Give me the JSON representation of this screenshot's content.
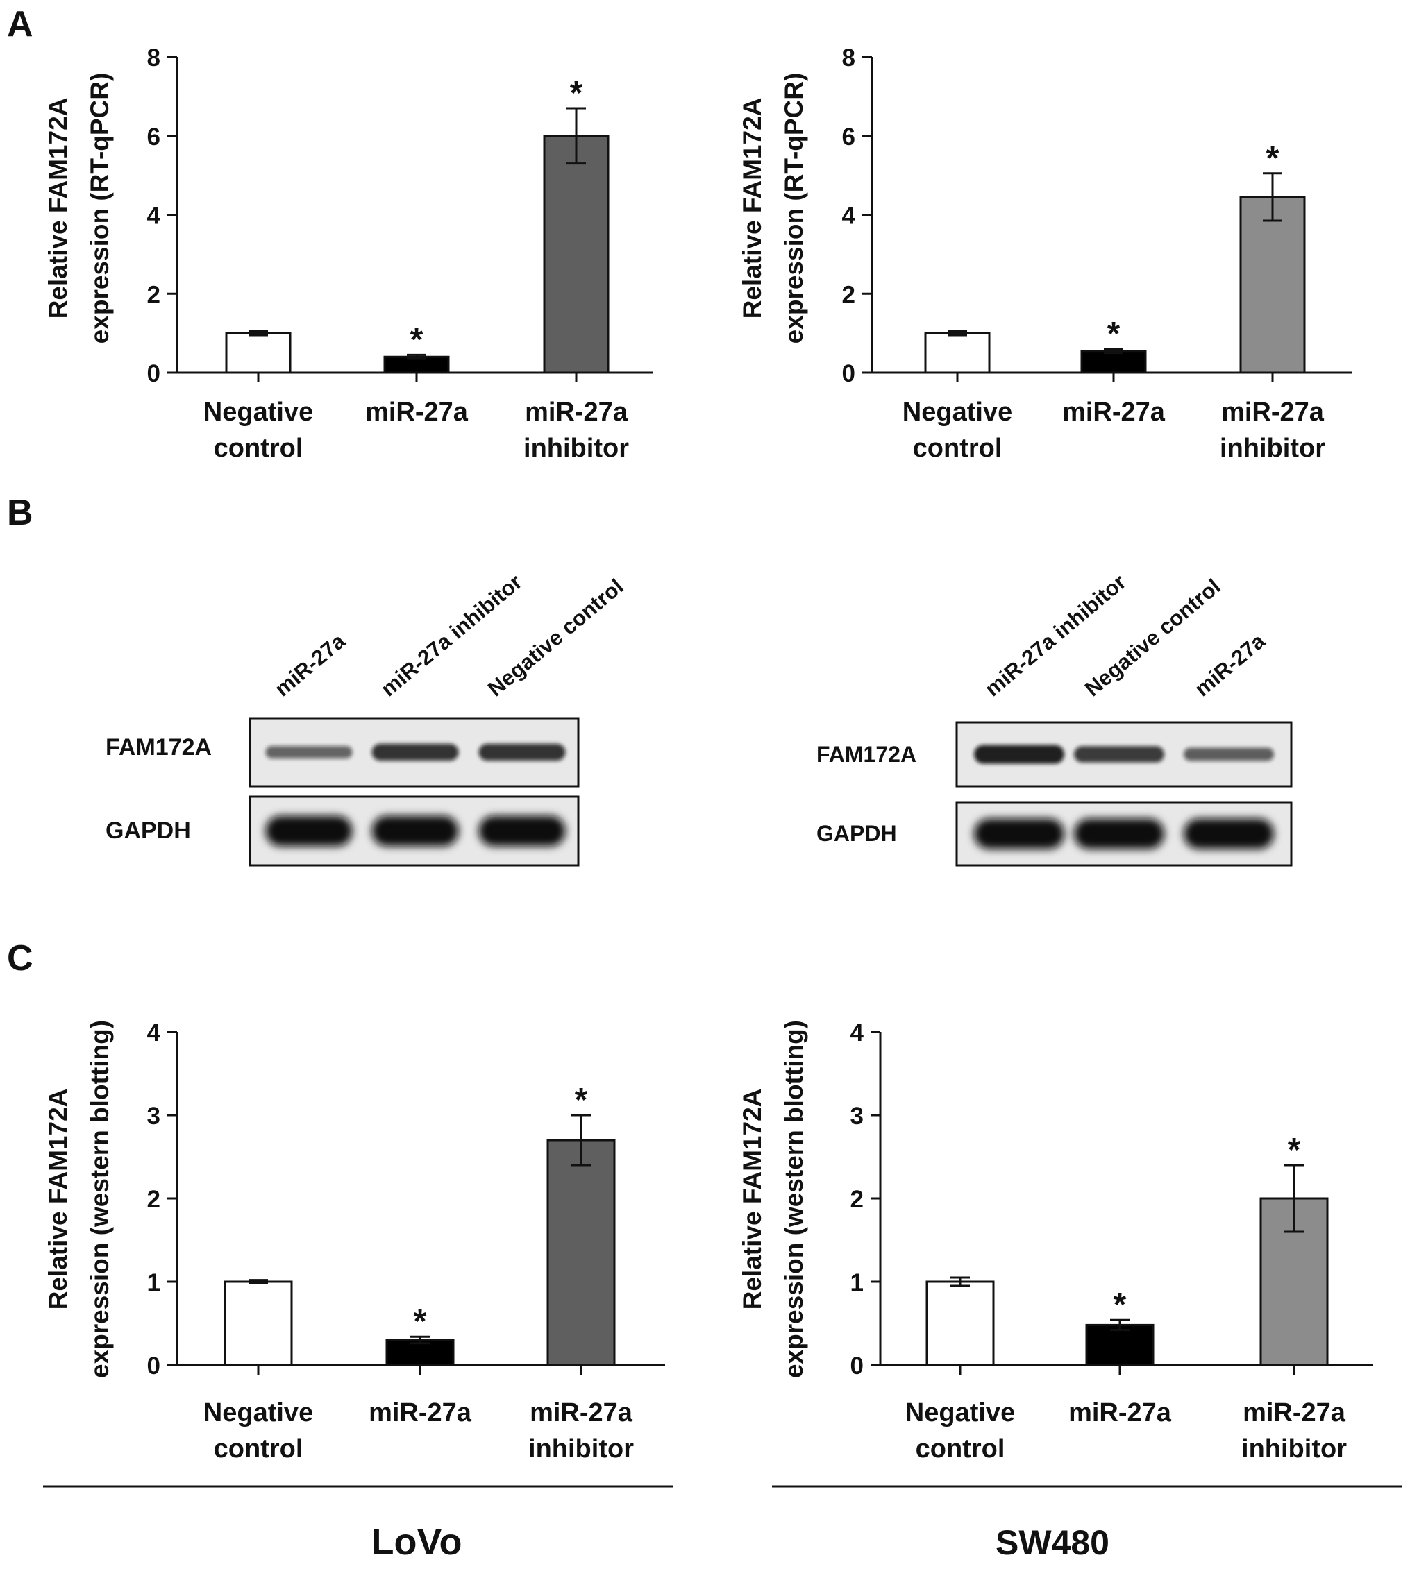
{
  "panel_letters": [
    "A",
    "B",
    "C"
  ],
  "cell_lines": [
    "LoVo",
    "SW480"
  ],
  "colors": {
    "negative_control": "#ffffff",
    "mir27a": "#000000",
    "inhibitor_lovo": "#5f5f5f",
    "inhibitor_sw480": "#8c8c8c"
  },
  "chart_data": [
    {
      "id": "A-LoVo",
      "type": "bar",
      "categories": [
        "Negative control",
        "miR-27a",
        "miR-27a inhibitor"
      ],
      "category_lines": [
        [
          "Negative",
          "control"
        ],
        [
          "miR-27a"
        ],
        [
          "miR-27a",
          "inhibitor"
        ]
      ],
      "values": [
        1.0,
        0.4,
        6.0
      ],
      "errors": [
        0.05,
        0.05,
        0.7
      ],
      "significance": [
        "",
        "*",
        "*"
      ],
      "bar_colors": [
        "#ffffff",
        "#000000",
        "#5f5f5f"
      ],
      "ylabel_lines": [
        "Relative FAM172A",
        "expression (RT-qPCR)"
      ],
      "ylim": [
        0,
        8
      ],
      "yticks": [
        0,
        2,
        4,
        6,
        8
      ]
    },
    {
      "id": "A-SW480",
      "type": "bar",
      "categories": [
        "Negative control",
        "miR-27a",
        "miR-27a inhibitor"
      ],
      "category_lines": [
        [
          "Negative",
          "control"
        ],
        [
          "miR-27a"
        ],
        [
          "miR-27a",
          "inhibitor"
        ]
      ],
      "values": [
        1.0,
        0.55,
        4.45
      ],
      "errors": [
        0.05,
        0.05,
        0.6
      ],
      "significance": [
        "",
        "*",
        "*"
      ],
      "bar_colors": [
        "#ffffff",
        "#000000",
        "#8c8c8c"
      ],
      "ylabel_lines": [
        "Relative FAM172A",
        "expression (RT-qPCR)"
      ],
      "ylim": [
        0,
        8
      ],
      "yticks": [
        0,
        2,
        4,
        6,
        8
      ]
    },
    {
      "id": "C-LoVo",
      "type": "bar",
      "categories": [
        "Negative control",
        "miR-27a",
        "miR-27a inhibitor"
      ],
      "category_lines": [
        [
          "Negative",
          "control"
        ],
        [
          "miR-27a"
        ],
        [
          "miR-27a",
          "inhibitor"
        ]
      ],
      "values": [
        1.0,
        0.3,
        2.7
      ],
      "errors": [
        0.02,
        0.04,
        0.3
      ],
      "significance": [
        "",
        "*",
        "*"
      ],
      "bar_colors": [
        "#ffffff",
        "#000000",
        "#5f5f5f"
      ],
      "ylabel_lines": [
        "Relative FAM172A",
        "expression (western blotting)"
      ],
      "ylim": [
        0,
        4
      ],
      "yticks": [
        0,
        1,
        2,
        3,
        4
      ]
    },
    {
      "id": "C-SW480",
      "type": "bar",
      "categories": [
        "Negative control",
        "miR-27a",
        "miR-27a inhibitor"
      ],
      "category_lines": [
        [
          "Negative",
          "control"
        ],
        [
          "miR-27a"
        ],
        [
          "miR-27a",
          "inhibitor"
        ]
      ],
      "values": [
        1.0,
        0.48,
        2.0
      ],
      "errors": [
        0.05,
        0.06,
        0.4
      ],
      "significance": [
        "",
        "*",
        "*"
      ],
      "bar_colors": [
        "#ffffff",
        "#000000",
        "#8c8c8c"
      ],
      "ylabel_lines": [
        "Relative FAM172A",
        "expression (western blotting)"
      ],
      "ylim": [
        0,
        4
      ],
      "yticks": [
        0,
        1,
        2,
        3,
        4
      ]
    }
  ],
  "blots": [
    {
      "id": "B-LoVo",
      "lanes": [
        "miR-27a",
        "miR-27a inhibitor",
        "Negative control"
      ],
      "rows": [
        {
          "label": "FAM172A",
          "intensities": [
            0.45,
            0.8,
            0.8
          ]
        },
        {
          "label": "GAPDH",
          "intensities": [
            1.0,
            1.0,
            1.0
          ]
        }
      ]
    },
    {
      "id": "B-SW480",
      "lanes": [
        "miR-27a inhibitor",
        "Negative control",
        "miR-27a"
      ],
      "rows": [
        {
          "label": "FAM172A",
          "intensities": [
            0.95,
            0.75,
            0.5
          ]
        },
        {
          "label": "GAPDH",
          "intensities": [
            1.0,
            1.0,
            1.0
          ]
        }
      ]
    }
  ]
}
